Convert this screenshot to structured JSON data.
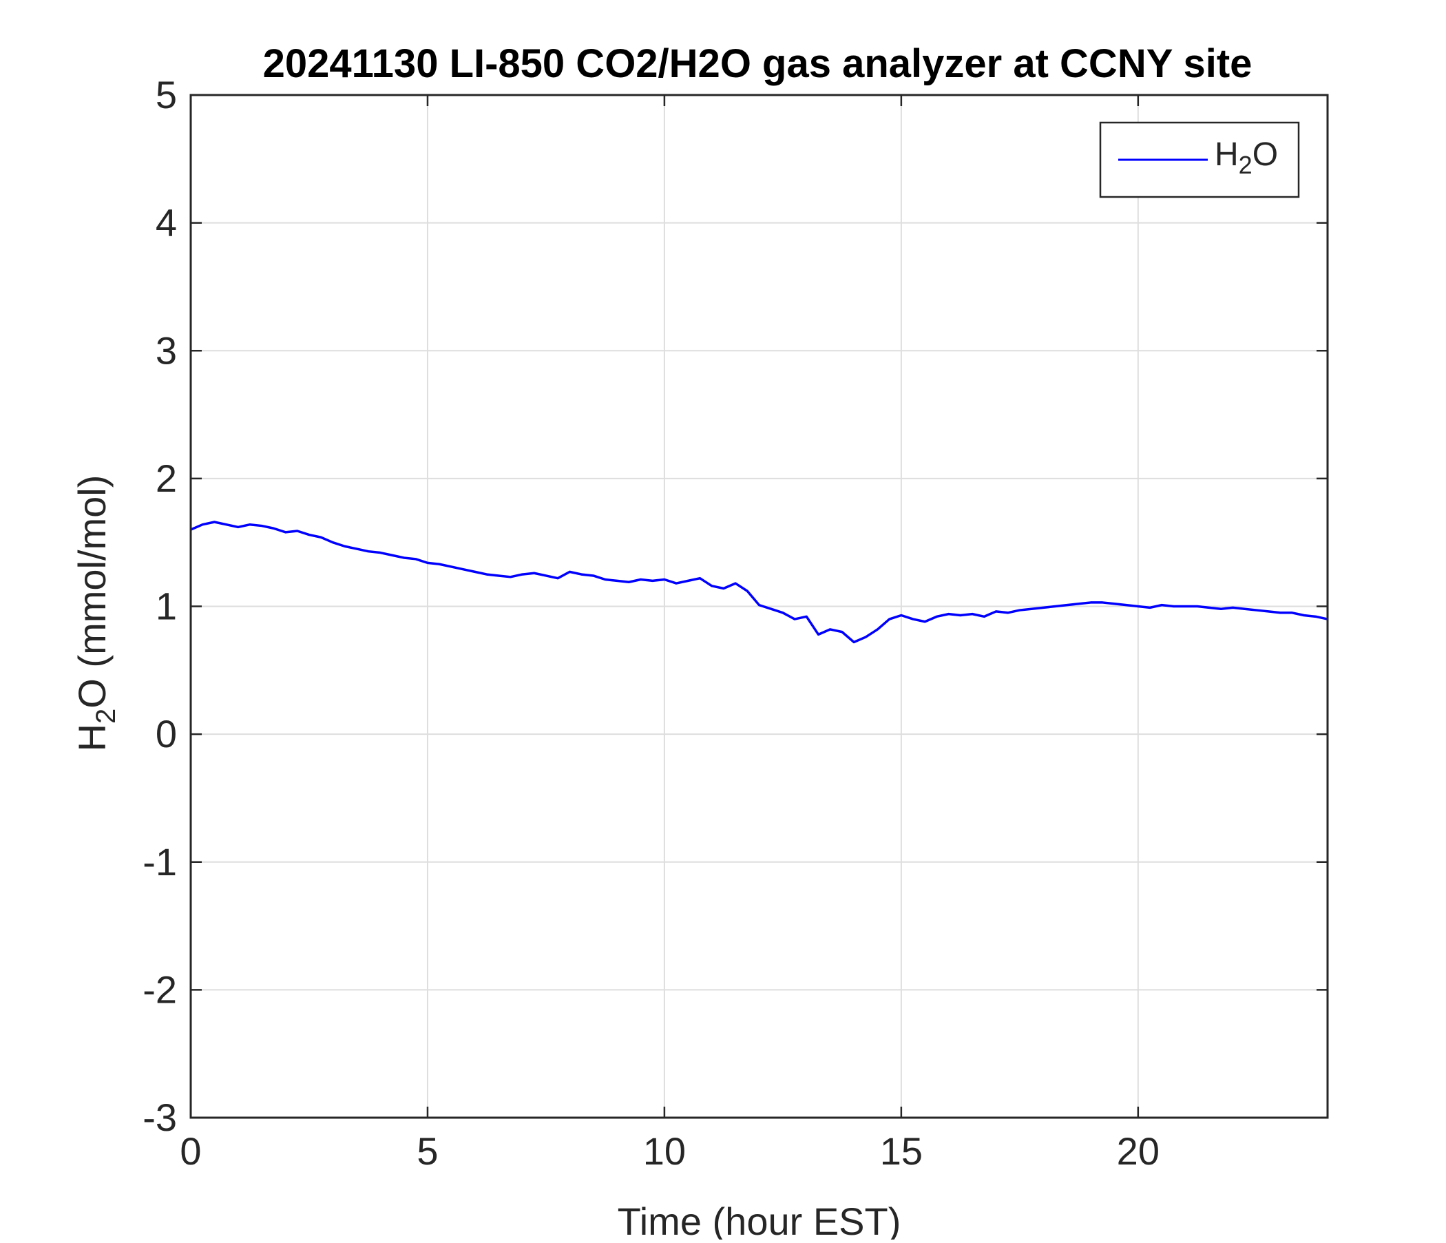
{
  "chart_data": {
    "type": "line",
    "title": "20241130 LI-850 CO2/H2O gas analyzer at CCNY site",
    "xlabel": "Time (hour EST)",
    "ylabel": {
      "main": "H",
      "sub": "2",
      "rest": "O (mmol/mol)"
    },
    "xlim": [
      0,
      24
    ],
    "ylim": [
      -3,
      5
    ],
    "xticks": [
      0,
      5,
      10,
      15,
      20
    ],
    "yticks": [
      -3,
      -2,
      -1,
      0,
      1,
      2,
      3,
      4,
      5
    ],
    "grid": true,
    "legend": {
      "position": "top-right"
    },
    "series": [
      {
        "name": {
          "main": "H",
          "sub": "2",
          "rest": "O"
        },
        "color": "#0000ff",
        "x": [
          0,
          0.25,
          0.5,
          0.75,
          1,
          1.25,
          1.5,
          1.75,
          2,
          2.25,
          2.5,
          2.75,
          3,
          3.25,
          3.5,
          3.75,
          4,
          4.25,
          4.5,
          4.75,
          5,
          5.25,
          5.5,
          5.75,
          6,
          6.25,
          6.5,
          6.75,
          7,
          7.25,
          7.5,
          7.75,
          8,
          8.25,
          8.5,
          8.75,
          9,
          9.25,
          9.5,
          9.75,
          10,
          10.25,
          10.5,
          10.75,
          11,
          11.25,
          11.5,
          11.75,
          12,
          12.25,
          12.5,
          12.75,
          13,
          13.25,
          13.5,
          13.75,
          14,
          14.25,
          14.5,
          14.75,
          15,
          15.25,
          15.5,
          15.75,
          16,
          16.25,
          16.5,
          16.75,
          17,
          17.25,
          17.5,
          17.75,
          18,
          18.25,
          18.5,
          18.75,
          19,
          19.25,
          19.5,
          19.75,
          20,
          20.25,
          20.5,
          20.75,
          21,
          21.25,
          21.5,
          21.75,
          22,
          22.25,
          22.5,
          22.75,
          23,
          23.25,
          23.5,
          23.75,
          24
        ],
        "y": [
          1.6,
          1.64,
          1.66,
          1.64,
          1.62,
          1.64,
          1.63,
          1.61,
          1.58,
          1.59,
          1.56,
          1.54,
          1.5,
          1.47,
          1.45,
          1.43,
          1.42,
          1.4,
          1.38,
          1.37,
          1.34,
          1.33,
          1.31,
          1.29,
          1.27,
          1.25,
          1.24,
          1.23,
          1.25,
          1.26,
          1.24,
          1.22,
          1.27,
          1.25,
          1.24,
          1.21,
          1.2,
          1.19,
          1.21,
          1.2,
          1.21,
          1.18,
          1.2,
          1.22,
          1.16,
          1.14,
          1.18,
          1.12,
          1.01,
          0.98,
          0.95,
          0.9,
          0.92,
          0.78,
          0.82,
          0.8,
          0.72,
          0.76,
          0.82,
          0.9,
          0.93,
          0.9,
          0.88,
          0.92,
          0.94,
          0.93,
          0.94,
          0.92,
          0.96,
          0.95,
          0.97,
          0.98,
          0.99,
          1.0,
          1.01,
          1.02,
          1.03,
          1.03,
          1.02,
          1.01,
          1.0,
          0.99,
          1.01,
          1.0,
          1.0,
          1.0,
          0.99,
          0.98,
          0.99,
          0.98,
          0.97,
          0.96,
          0.95,
          0.95,
          0.93,
          0.92,
          0.9
        ]
      }
    ]
  }
}
